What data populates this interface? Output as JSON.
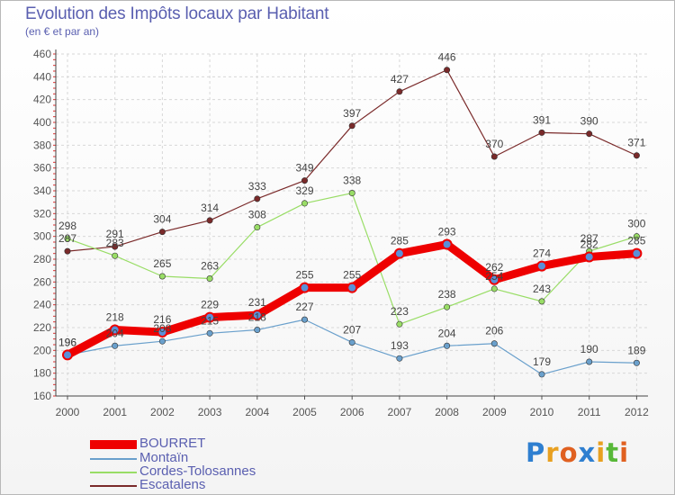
{
  "header": {
    "title": "Evolution des Impôts locaux par Habitant",
    "subtitle": "(en € et par an)"
  },
  "logo": {
    "letters": [
      "P",
      "r",
      "o",
      "x",
      "i",
      "t",
      "i"
    ],
    "colors": [
      "#2f7fd0",
      "#e8a020",
      "#e06020",
      "#2f7fd0",
      "#e8a020",
      "#58b838",
      "#e06020"
    ]
  },
  "chart_data": {
    "type": "line",
    "title": "Evolution des Impôts locaux par Habitant",
    "subtitle": "(en € et par an)",
    "xlabel": "",
    "ylabel": "",
    "ylim": [
      160,
      460
    ],
    "yticks": [
      160,
      180,
      200,
      220,
      240,
      260,
      280,
      300,
      320,
      340,
      360,
      380,
      400,
      420,
      440,
      460
    ],
    "categories": [
      "2000",
      "2001",
      "2002",
      "2003",
      "2004",
      "2005",
      "2006",
      "2007",
      "2008",
      "2009",
      "2010",
      "2011",
      "2012"
    ],
    "grid": true,
    "legend_position": "bottom-left",
    "series": [
      {
        "name": "BOURRET",
        "color": "#ee0000",
        "width": 9,
        "values": [
          196,
          218,
          216,
          229,
          231,
          255,
          255,
          285,
          293,
          262,
          274,
          282,
          285
        ]
      },
      {
        "name": "Montaïn",
        "color": "#6aa0cc",
        "width": 1.2,
        "values": [
          196,
          204,
          208,
          215,
          218,
          227,
          207,
          193,
          204,
          206,
          179,
          190,
          189
        ]
      },
      {
        "name": "Cordes-Tolosannes",
        "color": "#99dd66",
        "width": 1.2,
        "values": [
          298,
          283,
          265,
          263,
          308,
          329,
          338,
          223,
          238,
          254,
          243,
          287,
          300
        ]
      },
      {
        "name": "Escatalens",
        "color": "#7a2a2a",
        "width": 1.2,
        "values": [
          287,
          291,
          304,
          314,
          333,
          349,
          397,
          427,
          446,
          370,
          391,
          390,
          371
        ]
      }
    ],
    "data_labels": [
      [
        "196",
        "218",
        "216",
        "229",
        "231",
        "255",
        "255",
        "285",
        "293",
        "262",
        "274",
        "282",
        "285"
      ],
      [
        "196",
        "204",
        "208",
        "215",
        "218",
        "227",
        "207",
        "193",
        "204",
        "206",
        "179",
        "190",
        "189"
      ],
      [
        "298",
        "283",
        "265",
        "263",
        "308",
        "329",
        "338",
        "223",
        "238",
        "254",
        "243",
        "287",
        "300"
      ],
      [
        "287",
        "291",
        "304",
        "314",
        "333",
        "349",
        "397",
        "427",
        "446",
        "370",
        "391",
        "390",
        "371"
      ]
    ]
  }
}
